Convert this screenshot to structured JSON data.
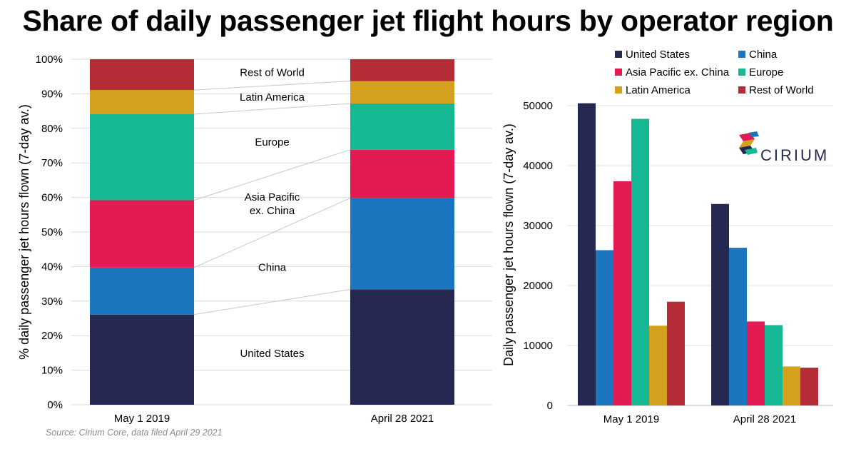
{
  "title": "Share of daily passenger jet flight hours by operator region",
  "source": "Source: Cirium Core, data filed April 29 2021",
  "logo": {
    "text": "CIRIUM"
  },
  "colors": {
    "United States": "#252850",
    "China": "#1c76bf",
    "Asia Pacific ex. China": "#e21c52",
    "Europe": "#15b892",
    "Latin America": "#d3a11e",
    "Rest of World": "#b52b36"
  },
  "chart_data": [
    {
      "type": "bar",
      "stacked": true,
      "categories": [
        "May 1 2019",
        "April 28 2021"
      ],
      "ylabel": "% daily passenger jet hours flown (7-day av.)",
      "ylim": [
        0,
        100
      ],
      "yticks": [
        "0%",
        "10%",
        "20%",
        "30%",
        "40%",
        "50%",
        "60%",
        "70%",
        "80%",
        "90%",
        "100%"
      ],
      "grid": true,
      "series": [
        {
          "name": "United States",
          "values": [
            26.1,
            33.4
          ]
        },
        {
          "name": "China",
          "values": [
            13.6,
            26.4
          ]
        },
        {
          "name": "Asia Pacific ex. China",
          "values": [
            19.5,
            14.0
          ]
        },
        {
          "name": "Europe",
          "values": [
            24.9,
            13.4
          ]
        },
        {
          "name": "Latin America",
          "values": [
            7.0,
            6.5
          ]
        },
        {
          "name": "Rest of World",
          "values": [
            8.9,
            6.3
          ]
        }
      ],
      "segment_labels": [
        "United States",
        "China",
        "Asia Pacific\nex. China",
        "Europe",
        "Latin America",
        "Rest of World"
      ]
    },
    {
      "type": "bar",
      "stacked": false,
      "categories": [
        "May 1 2019",
        "April 28 2021"
      ],
      "ylabel": "Daily passenger jet hours flown (7-day av.)",
      "ylim": [
        0,
        55000
      ],
      "yticks": [
        "0",
        "10000",
        "20000",
        "30000",
        "40000",
        "50000"
      ],
      "grid": true,
      "legend_position": "top",
      "series": [
        {
          "name": "United States",
          "values": [
            50400,
            33600
          ]
        },
        {
          "name": "China",
          "values": [
            25900,
            26300
          ]
        },
        {
          "name": "Asia Pacific ex. China",
          "values": [
            37400,
            14000
          ]
        },
        {
          "name": "Europe",
          "values": [
            47800,
            13400
          ]
        },
        {
          "name": "Latin America",
          "values": [
            13300,
            6500
          ]
        },
        {
          "name": "Rest of World",
          "values": [
            17300,
            6300
          ]
        }
      ]
    }
  ]
}
